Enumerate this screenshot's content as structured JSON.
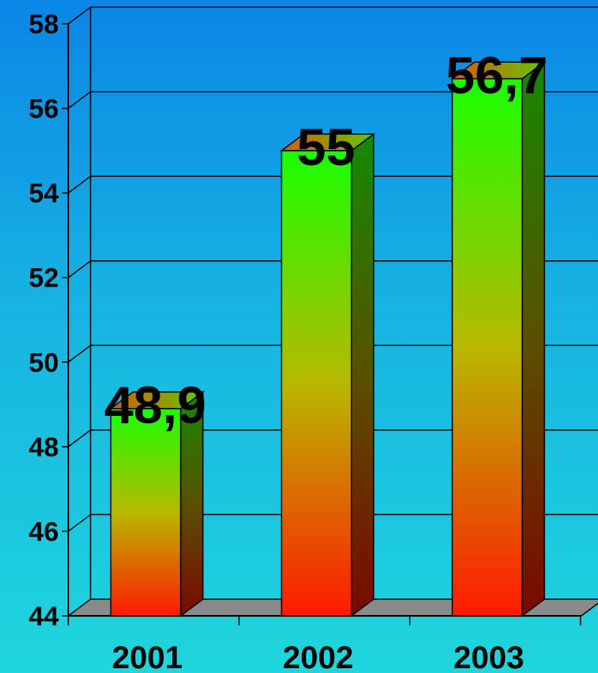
{
  "chart_data": {
    "type": "bar",
    "categories": [
      "2001",
      "2002",
      "2003"
    ],
    "values": [
      48.9,
      55,
      56.7
    ],
    "data_labels": [
      "48,9",
      "55",
      "56,7"
    ],
    "title": "",
    "xlabel": "",
    "ylabel": "",
    "ylim": [
      44,
      58
    ],
    "yticks": [
      "44",
      "46",
      "48",
      "50",
      "52",
      "54",
      "56",
      "58"
    ],
    "grid": true,
    "legend": "none",
    "colors": {
      "bar_top": "#19ff00",
      "bar_bottom": "#ff1a00",
      "bar_side_top": "#138a00",
      "bar_side_bottom": "#7a0800",
      "floor": "#8a8a8a",
      "gridline": "#000000"
    }
  }
}
